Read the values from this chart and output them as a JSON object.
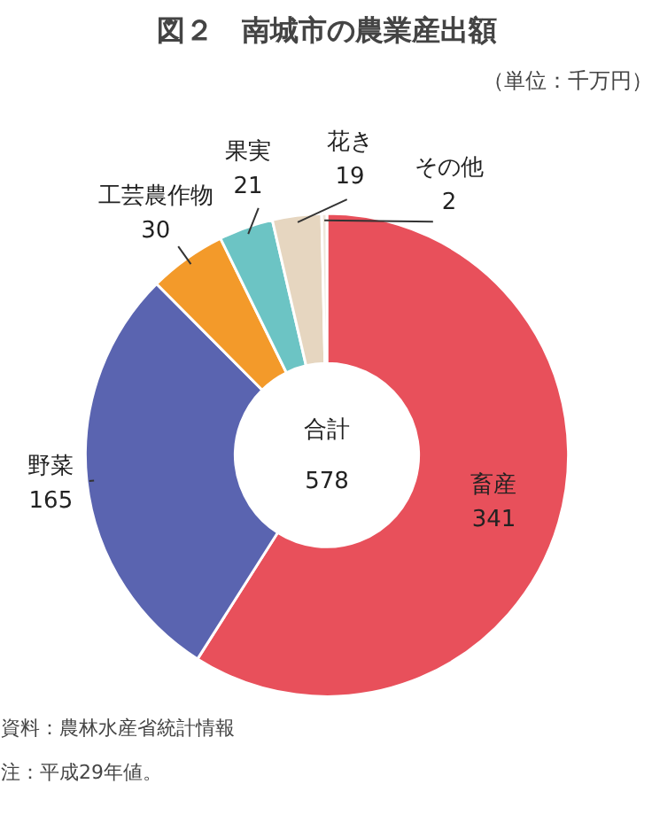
{
  "chart_data": {
    "type": "donut",
    "title": "図２　南城市の農業産出額",
    "subtitle": "（単位：千万円）",
    "categories": [
      "畜産",
      "野菜",
      "工芸農作物",
      "果実",
      "花き",
      "その他"
    ],
    "values": [
      341,
      165,
      30,
      21,
      19,
      2
    ],
    "colors": [
      "#e8505b",
      "#5a64b0",
      "#f39a2a",
      "#6cc4c4",
      "#e6d6c0",
      "#efe6da"
    ],
    "data_labels": true,
    "annotations": [
      "合計\n578",
      "資料：農林水産省統計情報",
      "注：平成29年値。"
    ]
  }
}
